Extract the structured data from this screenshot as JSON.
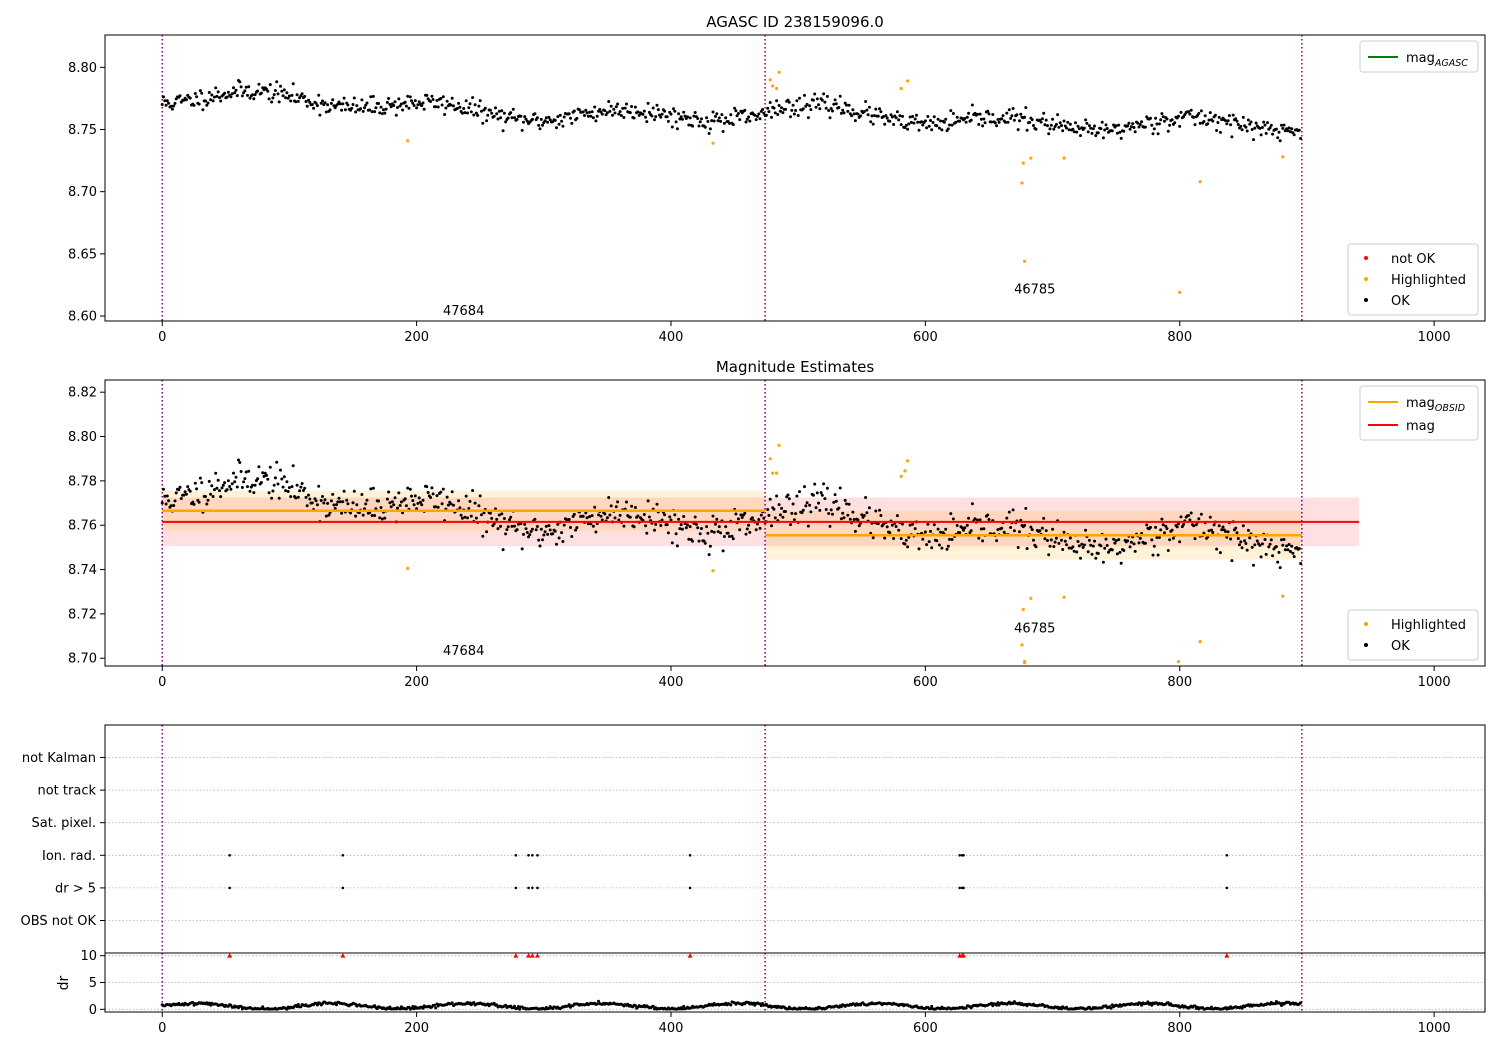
{
  "colors": {
    "ok": "#000000",
    "highlighted": "#ffa500",
    "not_ok": "#ff0000",
    "agasc_line": "#008000",
    "mag_line": "#ff0000",
    "obsid_line": "#ffa500",
    "obsid_divider": "#800080"
  },
  "dividers": [
    0,
    474,
    896
  ],
  "chart_data": [
    {
      "type": "scatter",
      "title": "AGASC ID 238159096.0",
      "xlim": [
        -45,
        1040
      ],
      "ylim": [
        8.596,
        8.826
      ],
      "xticks": [
        0,
        200,
        400,
        600,
        800,
        1000
      ],
      "yticks": [
        8.6,
        8.65,
        8.7,
        8.75,
        8.8
      ],
      "ytick_labels": [
        "8.60",
        "8.65",
        "8.70",
        "8.75",
        "8.80"
      ],
      "legend_lines": [
        {
          "label": "mag",
          "sub": "AGASC",
          "color": "#008000"
        }
      ],
      "legend_points": [
        {
          "label": "not OK",
          "color": "#ff0000"
        },
        {
          "label": "Highlighted",
          "color": "#ffa500"
        },
        {
          "label": "OK",
          "color": "#000000"
        }
      ],
      "annotations": [
        {
          "text": "47684",
          "x": 237,
          "y": 8.601
        },
        {
          "text": "46785",
          "x": 686,
          "y": 8.618
        }
      ],
      "series": [
        {
          "name": "OK",
          "segments": [
            {
              "x_start": 0,
              "x_end": 474,
              "n": 474,
              "base_start": 8.776,
              "base_end": 8.758,
              "amp": 0.008,
              "noise": 0.007,
              "seed": 11
            },
            {
              "x_start": 474,
              "x_end": 896,
              "n": 422,
              "base_start": 8.764,
              "base_end": 8.75,
              "amp": 0.008,
              "noise": 0.007,
              "seed": 23
            }
          ]
        },
        {
          "name": "Highlighted",
          "points": [
            [
              193,
              8.741
            ],
            [
              433,
              8.739
            ],
            [
              478,
              8.79
            ],
            [
              480,
              8.785
            ],
            [
              483,
              8.783
            ],
            [
              485,
              8.796
            ],
            [
              581,
              8.783
            ],
            [
              586,
              8.789
            ],
            [
              676,
              8.707
            ],
            [
              677,
              8.723
            ],
            [
              678,
              8.644
            ],
            [
              678,
              8.624
            ],
            [
              683,
              8.727
            ],
            [
              709,
              8.727
            ],
            [
              800,
              8.619
            ],
            [
              816,
              8.708
            ],
            [
              881,
              8.728
            ]
          ]
        }
      ]
    },
    {
      "type": "scatter",
      "title": "Magnitude Estimates",
      "xlim": [
        -45,
        1040
      ],
      "ylim": [
        8.6965,
        8.8255
      ],
      "xticks": [
        0,
        200,
        400,
        600,
        800,
        1000
      ],
      "yticks": [
        8.7,
        8.72,
        8.74,
        8.76,
        8.78,
        8.8,
        8.82
      ],
      "ytick_labels": [
        "8.70",
        "8.72",
        "8.74",
        "8.76",
        "8.78",
        "8.80",
        "8.82"
      ],
      "legend_lines": [
        {
          "label": "mag",
          "sub": "OBSID",
          "color": "#ffa500"
        },
        {
          "label": "mag",
          "sub": "",
          "color": "#ff0000"
        }
      ],
      "legend_points": [
        {
          "label": "Highlighted",
          "color": "#ffa500"
        },
        {
          "label": "OK",
          "color": "#000000"
        }
      ],
      "annotations": [
        {
          "text": "47684",
          "x": 237,
          "y": 8.7015
        },
        {
          "text": "46785",
          "x": 686,
          "y": 8.7115
        }
      ],
      "mag": {
        "value": 8.7615,
        "band": [
          8.7505,
          8.7725
        ],
        "x_range": [
          0,
          941
        ]
      },
      "mag_obsid": [
        {
          "x_range": [
            0,
            474
          ],
          "value": 8.7665,
          "band": [
            8.7575,
            8.7755
          ]
        },
        {
          "x_range": [
            474,
            896
          ],
          "value": 8.7555,
          "band": [
            8.7445,
            8.7665
          ]
        }
      ],
      "series": [
        {
          "name": "Highlighted",
          "points": [
            [
              193,
              8.7405
            ],
            [
              433,
              8.7395
            ],
            [
              478,
              8.79
            ],
            [
              480,
              8.7835
            ],
            [
              483,
              8.7835
            ],
            [
              485,
              8.796
            ],
            [
              581,
              8.782
            ],
            [
              584,
              8.7845
            ],
            [
              586,
              8.789
            ],
            [
              676,
              8.706
            ],
            [
              677,
              8.722
            ],
            [
              678,
              8.698
            ],
            [
              678,
              8.6985
            ],
            [
              683,
              8.727
            ],
            [
              709,
              8.7275
            ],
            [
              799,
              8.6985
            ],
            [
              816,
              8.7075
            ],
            [
              881,
              8.728
            ]
          ]
        }
      ]
    },
    {
      "type": "scatter",
      "xlim": [
        -45,
        1040
      ],
      "categories": [
        "OBS not OK",
        "dr > 5",
        "Ion. rad.",
        "Sat. pixel.",
        "not track",
        "not Kalman"
      ],
      "flag_rows": [
        {
          "category": "Ion. rad.",
          "x": [
            53,
            142,
            278,
            288,
            291,
            295,
            415,
            627,
            629,
            630,
            837
          ]
        },
        {
          "category": "dr > 5",
          "x": [
            53,
            142,
            278,
            288,
            291,
            295,
            415,
            627,
            629,
            630,
            837
          ]
        }
      ]
    },
    {
      "type": "scatter",
      "ylabel": "dr",
      "xlim": [
        -45,
        1040
      ],
      "ylim": [
        -0.5,
        10.5
      ],
      "xticks": [
        0,
        200,
        400,
        600,
        800,
        1000
      ],
      "yticks": [
        0,
        5,
        10
      ],
      "ytick_labels": [
        "0",
        "5",
        "10"
      ],
      "series": [
        {
          "name": "dr",
          "segments": [
            {
              "x_start": 0,
              "x_end": 896,
              "n": 896,
              "base": 0.6,
              "amp": 0.5,
              "noise": 0.15,
              "seed": 41
            }
          ]
        },
        {
          "name": "dr > 5",
          "x": [
            53,
            142,
            278,
            288,
            291,
            295,
            415,
            627,
            629,
            630,
            837
          ],
          "y": 10
        }
      ]
    }
  ]
}
